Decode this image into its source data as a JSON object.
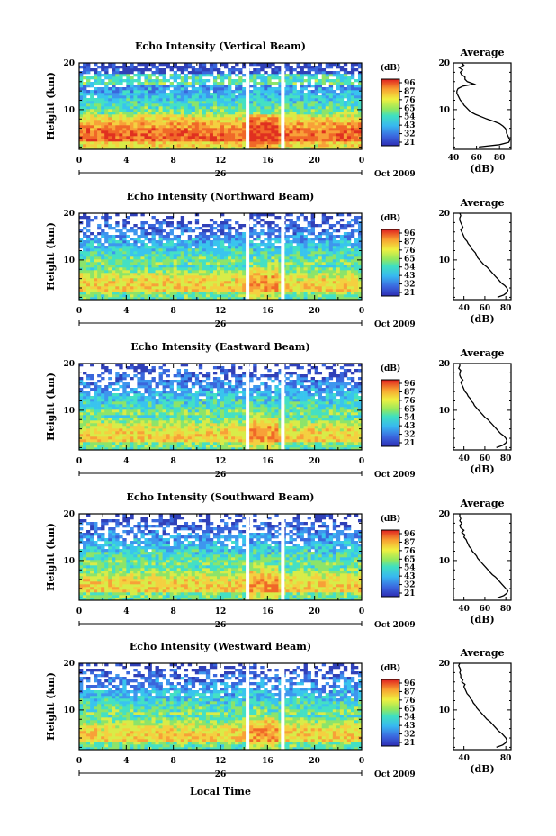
{
  "chart_data": [
    {
      "type": "heatmap",
      "title": "Echo Intensity (Vertical Beam)",
      "ylabel": "Height (km)",
      "xticks": [
        "0",
        "4",
        "8",
        "12",
        "16",
        "20",
        "0"
      ],
      "yticks": [
        "10",
        "20"
      ],
      "xlim": [
        0,
        24
      ],
      "ylim": [
        1.5,
        20
      ],
      "date_day": "26",
      "date_month": "Oct 2009",
      "gaps_hours": [
        14.3,
        17.3
      ],
      "colorbar": {
        "label": "(dB)",
        "ticks": [
          "96",
          "87",
          "76",
          "65",
          "54",
          "43",
          "32",
          "21"
        ]
      },
      "profile": {
        "title": "Average",
        "xlabel": "(dB)",
        "xticks": [
          "40",
          "60",
          "80"
        ],
        "xlim": [
          40,
          90
        ],
        "yticks": [
          "10",
          "20"
        ],
        "ylim": [
          1.5,
          20
        ],
        "height": [
          2,
          2.5,
          3,
          3.5,
          4,
          4.5,
          5,
          5.5,
          6,
          6.5,
          7,
          7.5,
          8,
          8.5,
          9,
          9.5,
          10,
          10.5,
          11,
          11.5,
          12,
          12.5,
          13,
          13.5,
          14,
          14.5,
          15,
          15.5,
          16,
          16.5,
          17,
          17.5,
          18,
          18.5,
          19,
          19.5,
          20
        ],
        "db": [
          62,
          80,
          88,
          89,
          88,
          87,
          86,
          86,
          85,
          83,
          80,
          75,
          69,
          64,
          59,
          55,
          53,
          51,
          49,
          48,
          46,
          45,
          44,
          43,
          43,
          44,
          48,
          58,
          52,
          50,
          50,
          47,
          46,
          48,
          45,
          49,
          47
        ]
      }
    },
    {
      "type": "heatmap",
      "title": "Echo Intensity (Northward Beam)",
      "ylabel": "Height (km)",
      "xticks": [
        "0",
        "4",
        "8",
        "12",
        "16",
        "20",
        "0"
      ],
      "yticks": [
        "10",
        "20"
      ],
      "xlim": [
        0,
        24
      ],
      "ylim": [
        1.5,
        20
      ],
      "date_day": "26",
      "date_month": "Oct 2009",
      "gaps_hours": [
        14.3,
        17.3
      ],
      "colorbar": {
        "label": "(dB)",
        "ticks": [
          "96",
          "87",
          "76",
          "65",
          "54",
          "43",
          "32",
          "21"
        ]
      },
      "profile": {
        "title": "Average",
        "xlabel": "(dB)",
        "xticks": [
          "40",
          "60",
          "80"
        ],
        "xlim": [
          30,
          85
        ],
        "yticks": [
          "10",
          "20"
        ],
        "ylim": [
          1.5,
          20
        ],
        "height": [
          2,
          2.5,
          3,
          3.5,
          4,
          4.5,
          5,
          5.5,
          6,
          6.5,
          7,
          7.5,
          8,
          8.5,
          9,
          9.5,
          10,
          10.5,
          11,
          11.5,
          12,
          12.5,
          13,
          13.5,
          14,
          14.5,
          15,
          15.5,
          16,
          16.5,
          17,
          17.5,
          18,
          18.5,
          19,
          19.5,
          20
        ],
        "db": [
          72,
          78,
          81,
          82,
          81,
          79,
          76,
          74,
          72,
          70,
          68,
          66,
          64,
          62,
          59,
          57,
          55,
          53,
          52,
          51,
          49,
          47,
          46,
          44,
          43,
          41,
          40,
          39,
          38,
          37,
          39,
          38,
          37,
          36,
          36,
          37,
          36
        ]
      }
    },
    {
      "type": "heatmap",
      "title": "Echo Intensity (Eastward Beam)",
      "ylabel": "Height (km)",
      "xticks": [
        "0",
        "4",
        "8",
        "12",
        "16",
        "20",
        "0"
      ],
      "yticks": [
        "10",
        "20"
      ],
      "xlim": [
        0,
        24
      ],
      "ylim": [
        1.5,
        20
      ],
      "date_day": "26",
      "date_month": "Oct 2009",
      "gaps_hours": [
        14.3,
        17.3
      ],
      "colorbar": {
        "label": "(dB)",
        "ticks": [
          "96",
          "87",
          "76",
          "65",
          "54",
          "43",
          "32",
          "21"
        ]
      },
      "profile": {
        "title": "Average",
        "xlabel": "(dB)",
        "xticks": [
          "40",
          "60",
          "80"
        ],
        "xlim": [
          30,
          85
        ],
        "yticks": [
          "10",
          "20"
        ],
        "ylim": [
          1.5,
          20
        ],
        "height": [
          2,
          2.5,
          3,
          3.5,
          4,
          4.5,
          5,
          5.5,
          6,
          6.5,
          7,
          7.5,
          8,
          8.5,
          9,
          9.5,
          10,
          10.5,
          11,
          11.5,
          12,
          12.5,
          13,
          13.5,
          14,
          14.5,
          15,
          15.5,
          16,
          16.5,
          17,
          17.5,
          18,
          18.5,
          19,
          19.5,
          20
        ],
        "db": [
          71,
          77,
          80,
          81,
          80,
          78,
          75,
          73,
          71,
          69,
          67,
          65,
          63,
          60,
          58,
          56,
          54,
          52,
          50,
          49,
          47,
          46,
          44,
          43,
          41,
          40,
          39,
          38,
          37,
          39,
          37,
          36,
          36,
          37,
          35,
          36,
          36
        ]
      }
    },
    {
      "type": "heatmap",
      "title": "Echo Intensity (Southward Beam)",
      "ylabel": "Height (km)",
      "xticks": [
        "0",
        "4",
        "8",
        "12",
        "16",
        "20",
        "0"
      ],
      "yticks": [
        "10",
        "20"
      ],
      "xlim": [
        0,
        24
      ],
      "ylim": [
        1.5,
        20
      ],
      "date_day": "26",
      "date_month": "Oct 2009",
      "gaps_hours": [
        14.3,
        17.3
      ],
      "colorbar": {
        "label": "(dB)",
        "ticks": [
          "96",
          "87",
          "76",
          "65",
          "54",
          "43",
          "32",
          "21"
        ]
      },
      "profile": {
        "title": "Average",
        "xlabel": "(dB)",
        "xticks": [
          "40",
          "60",
          "80"
        ],
        "xlim": [
          30,
          85
        ],
        "yticks": [
          "10",
          "20"
        ],
        "ylim": [
          1.5,
          20
        ],
        "height": [
          2,
          2.5,
          3,
          3.5,
          4,
          4.5,
          5,
          5.5,
          6,
          6.5,
          7,
          7.5,
          8,
          8.5,
          9,
          9.5,
          10,
          10.5,
          11,
          11.5,
          12,
          12.5,
          13,
          13.5,
          14,
          14.5,
          15,
          15.5,
          16,
          16.5,
          17,
          17.5,
          18,
          18.5,
          19,
          19.5,
          20
        ],
        "db": [
          72,
          78,
          81,
          82,
          80,
          78,
          76,
          74,
          72,
          70,
          67,
          65,
          63,
          61,
          59,
          57,
          55,
          53,
          52,
          50,
          48,
          47,
          45,
          44,
          43,
          42,
          40,
          41,
          38,
          40,
          37,
          36,
          38,
          36,
          37,
          36,
          36
        ]
      }
    },
    {
      "type": "heatmap",
      "title": "Echo Intensity (Westward Beam)",
      "ylabel": "Height (km)",
      "xlabel": "Local Time",
      "xticks": [
        "0",
        "4",
        "8",
        "12",
        "16",
        "20",
        "0"
      ],
      "yticks": [
        "10",
        "20"
      ],
      "xlim": [
        0,
        24
      ],
      "ylim": [
        1.5,
        20
      ],
      "date_day": "26",
      "date_month": "Oct 2009",
      "gaps_hours": [
        14.3,
        17.3
      ],
      "colorbar": {
        "label": "(dB)",
        "ticks": [
          "96",
          "87",
          "76",
          "65",
          "54",
          "43",
          "32",
          "21"
        ]
      },
      "profile": {
        "title": "Average",
        "xlabel": "(dB)",
        "xticks": [
          "40",
          "80"
        ],
        "xlim": [
          30,
          85
        ],
        "yticks": [
          "10",
          "20"
        ],
        "ylim": [
          1.5,
          20
        ],
        "height": [
          2,
          2.5,
          3,
          3.5,
          4,
          4.5,
          5,
          5.5,
          6,
          6.5,
          7,
          7.5,
          8,
          8.5,
          9,
          9.5,
          10,
          10.5,
          11,
          11.5,
          12,
          12.5,
          13,
          13.5,
          14,
          14.5,
          15,
          15.5,
          16,
          16.5,
          17,
          17.5,
          18,
          18.5,
          19,
          19.5,
          20
        ],
        "db": [
          71,
          77,
          80,
          81,
          80,
          78,
          76,
          73,
          71,
          69,
          67,
          65,
          62,
          60,
          58,
          56,
          54,
          52,
          51,
          49,
          48,
          46,
          45,
          43,
          42,
          41,
          40,
          41,
          38,
          39,
          37,
          37,
          36,
          37,
          36,
          35,
          36
        ]
      }
    }
  ]
}
